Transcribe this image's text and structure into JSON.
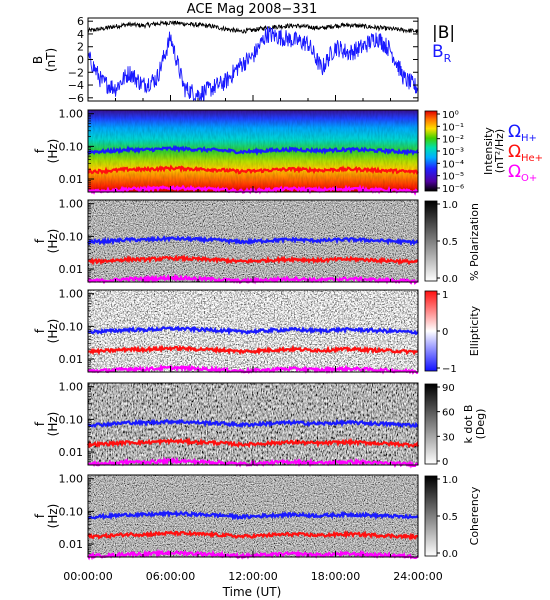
{
  "chart_data": {
    "type": "multi-panel spectrogram",
    "title": "ACE Mag 2008−331",
    "xlabel": "Time (UT)",
    "xlim": [
      "00:00:00",
      "24:00:00"
    ],
    "x_ticks": [
      "00:00:00",
      "06:00:00",
      "12:00:00",
      "18:00:00",
      "24:00:00"
    ],
    "panels": [
      {
        "name": "field",
        "ylabel": "B",
        "yunit": "(nT)",
        "ylim": [
          -6.5,
          6.5
        ],
        "yticks": [
          "6",
          "4",
          "2",
          "0",
          "−2",
          "−4",
          "−6"
        ],
        "series": [
          {
            "name": "|B|",
            "color": "#000000",
            "x_hours": [
              0,
              1,
              2,
              3,
              4,
              5,
              6,
              7,
              8,
              9,
              10,
              11,
              12,
              13,
              14,
              15,
              16,
              17,
              18,
              19,
              20,
              21,
              22,
              23,
              24
            ],
            "values": [
              4.5,
              4.8,
              5.2,
              5.5,
              5.3,
              5.6,
              5.8,
              5.6,
              5.4,
              5.2,
              4.8,
              4.4,
              4.6,
              5.0,
              5.2,
              5.3,
              5.1,
              4.9,
              5.3,
              5.4,
              5.2,
              5.0,
              4.8,
              4.6,
              4.4
            ]
          },
          {
            "name": "B",
            "subscript": "R",
            "color": "#1a1aff",
            "x_hours": [
              0,
              1,
              2,
              3,
              4,
              5,
              6,
              7,
              8,
              9,
              10,
              11,
              12,
              13,
              14,
              15,
              16,
              17,
              18,
              19,
              20,
              21,
              22,
              23,
              24
            ],
            "values": [
              0.5,
              -3.5,
              -4.5,
              -2.0,
              -4.0,
              -3.0,
              3.5,
              -4.5,
              -5.5,
              -4.5,
              -3.5,
              -1.0,
              0.5,
              4.0,
              3.5,
              3.0,
              2.5,
              -1.5,
              2.0,
              1.0,
              2.0,
              3.5,
              1.5,
              -3.0,
              -4.5
            ]
          }
        ]
      },
      {
        "name": "intensity",
        "ylabel": "f",
        "yunit": "(Hz)",
        "scale": "log",
        "ylim": [
          0.004,
          1.3
        ],
        "yticks": [
          "1.00",
          "0.10",
          "0.01"
        ],
        "colorbar_label": "Intensity",
        "colorbar_unit": "(nT²/Hz)",
        "colorbar_ticks": [
          "10⁰",
          "10⁻¹",
          "10⁻²",
          "10⁻³",
          "10⁻⁴",
          "10⁻⁵",
          "10⁻⁶"
        ],
        "colors": [
          "#2a0040",
          "#5a00a8",
          "#2020ff",
          "#00a0ff",
          "#00e0c0",
          "#20d020",
          "#c0e000",
          "#ffd000",
          "#ff8000",
          "#ff2000",
          "#c00000"
        ]
      },
      {
        "name": "polarization",
        "ylabel": "f",
        "yunit": "(Hz)",
        "scale": "log",
        "ylim": [
          0.004,
          1.3
        ],
        "yticks": [
          "1.00",
          "0.10",
          "0.01"
        ],
        "colorbar_label": "% Polarization",
        "colorbar_ticks": [
          "1.0",
          "0.5",
          "0.0"
        ],
        "colors": [
          "#ffffff",
          "#000000"
        ]
      },
      {
        "name": "ellipticity",
        "ylabel": "f",
        "yunit": "(Hz)",
        "scale": "log",
        "ylim": [
          0.004,
          1.3
        ],
        "yticks": [
          "1.00",
          "0.10",
          "0.01"
        ],
        "colorbar_label": "Ellipticity",
        "colorbar_ticks": [
          "1",
          "0",
          "−1"
        ],
        "colors": [
          "#1010ff",
          "#ffffff",
          "#ff1010"
        ]
      },
      {
        "name": "kdotb",
        "ylabel": "f",
        "yunit": "(Hz)",
        "scale": "log",
        "ylim": [
          0.004,
          1.3
        ],
        "yticks": [
          "1.00",
          "0.10",
          "0.01"
        ],
        "colorbar_label": "k dot B",
        "colorbar_unit": "(Deg)",
        "colorbar_ticks": [
          "90",
          "60",
          "30",
          "0"
        ],
        "colors": [
          "#ffffff",
          "#000000"
        ]
      },
      {
        "name": "coherency",
        "ylabel": "f",
        "yunit": "(Hz)",
        "scale": "log",
        "ylim": [
          0.004,
          1.3
        ],
        "yticks": [
          "1.00",
          "0.10",
          "0.01"
        ],
        "colorbar_label": "Coherency",
        "colorbar_ticks": [
          "1.0",
          "0.5",
          "0.0"
        ],
        "colors": [
          "#ffffff",
          "#000000"
        ]
      }
    ],
    "gyrofrequency_legend": [
      {
        "symbol": "Ω",
        "subscript": "H+",
        "color": "#1a1aff"
      },
      {
        "symbol": "Ω",
        "subscript": "He+",
        "color": "#ff1010"
      },
      {
        "symbol": "Ω",
        "subscript": "O+",
        "color": "#ff00ff"
      }
    ],
    "gyrofrequency_lines_hz": {
      "x_hours": [
        0,
        1,
        2,
        3,
        4,
        5,
        6,
        7,
        8,
        9,
        10,
        11,
        12,
        13,
        14,
        15,
        16,
        17,
        18,
        19,
        20,
        21,
        22,
        23,
        24
      ],
      "H+": [
        0.068,
        0.07,
        0.074,
        0.08,
        0.078,
        0.082,
        0.086,
        0.084,
        0.08,
        0.078,
        0.074,
        0.068,
        0.07,
        0.074,
        0.078,
        0.08,
        0.076,
        0.074,
        0.078,
        0.08,
        0.078,
        0.074,
        0.072,
        0.068,
        0.066
      ],
      "He+": [
        0.017,
        0.0175,
        0.0185,
        0.02,
        0.0195,
        0.0205,
        0.0215,
        0.021,
        0.02,
        0.0195,
        0.0185,
        0.017,
        0.0175,
        0.0185,
        0.0195,
        0.02,
        0.019,
        0.0185,
        0.0195,
        0.02,
        0.0195,
        0.0185,
        0.018,
        0.017,
        0.0165
      ],
      "O+": [
        0.0043,
        0.0044,
        0.0046,
        0.005,
        0.0049,
        0.0051,
        0.0054,
        0.0053,
        0.005,
        0.0049,
        0.0046,
        0.0043,
        0.0044,
        0.0046,
        0.0049,
        0.005,
        0.0048,
        0.0046,
        0.0049,
        0.005,
        0.0049,
        0.0046,
        0.0045,
        0.0043,
        0.0041
      ]
    }
  }
}
